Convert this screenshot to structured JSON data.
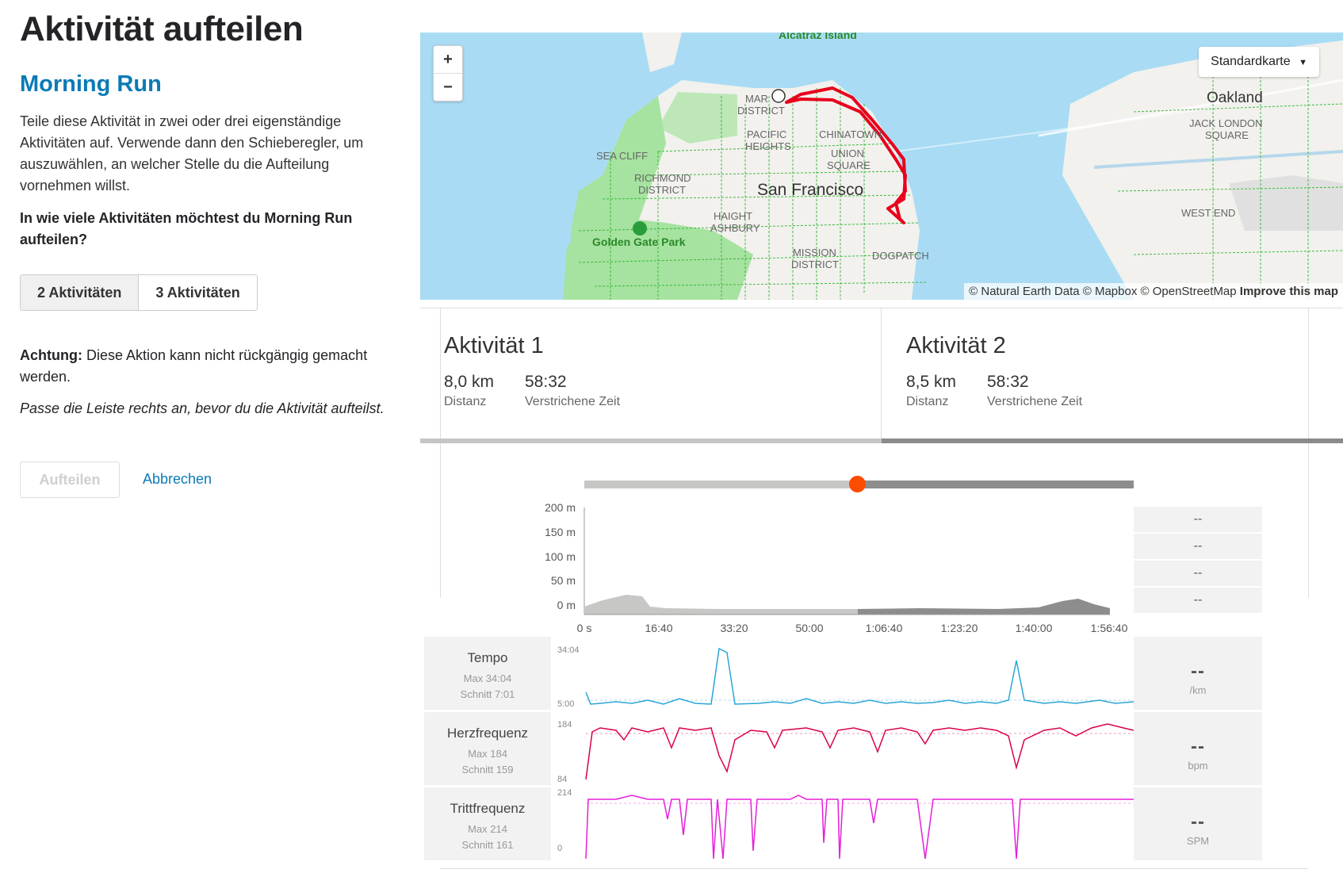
{
  "page": {
    "title": "Aktivität aufteilen",
    "activity_name": "Morning Run",
    "description": "Teile diese Aktivität in zwei oder drei eigenständige Aktivitäten auf. Verwende dann den Schieberegler, um auszuwählen, an welcher Stelle du die Aufteilung vornehmen willst.",
    "question": "In wie viele Aktivitäten möchtest du Morning Run aufteilen?",
    "option_two": "2 Aktivitäten",
    "option_three": "3 Aktivitäten",
    "warning_label": "Achtung:",
    "warning_text": " Diese Aktion kann nicht rückgängig gemacht werden.",
    "hint": "Passe die Leiste rechts an, bevor du die Aktivität aufteilst.",
    "split_button": "Aufteilen",
    "cancel_button": "Abbrechen"
  },
  "map": {
    "zoom_in": "+",
    "zoom_out": "−",
    "map_type": "Standardkarte",
    "attribution": "© Natural Earth Data © Mapbox © OpenStreetMap",
    "improve": "Improve this map",
    "labels": {
      "alcatraz": "Alcatraz Island",
      "marina": "MAR",
      "district": "DISTRICT",
      "pacific": "PACIFIC",
      "heights": "HEIGHTS",
      "chinatown": "CHINATOWN",
      "union": "UNION",
      "square": "SQUARE",
      "seacliff": "SEA CLIFF",
      "richmond": "RICHMOND",
      "richmond_district": "DISTRICT",
      "sf": "San Francisco",
      "haight": "HAIGHT",
      "ashbury": "ASHBURY",
      "ggpark": "Golden Gate Park",
      "mission": "MISSION",
      "mission_district": "DISTRICT",
      "dogpatch": "DOGPATCH",
      "oakland": "Oakland",
      "jack_london": "JACK LONDON",
      "jl_square": "SQUARE",
      "west_end": "WEST END"
    },
    "colors": {
      "water": "#a9dcf4",
      "land": "#f2f1ee",
      "park": "#a6e2a0",
      "route": "#e8001c"
    }
  },
  "activities": [
    {
      "title": "Aktivität 1",
      "distance": "8,0 km",
      "distance_label": "Distanz",
      "time": "58:32",
      "time_label": "Verstrichene Zeit"
    },
    {
      "title": "Aktivität 2",
      "distance": "8,5 km",
      "distance_label": "Distanz",
      "time": "58:32",
      "time_label": "Verstrichene Zeit"
    }
  ],
  "elevation": {
    "y_ticks": [
      "200 m",
      "150 m",
      "100 m",
      "50 m",
      "0 m"
    ],
    "x_ticks": [
      "0 s",
      "16:40",
      "33:20",
      "50:00",
      "1:06:40",
      "1:23:20",
      "1:40:00",
      "1:56:40"
    ],
    "right_values": [
      "--",
      "--",
      "--",
      "--"
    ]
  },
  "sensors": [
    {
      "name": "Tempo",
      "max": "Max 34:04",
      "avg": "Schnitt 7:01",
      "top_label": "34:04",
      "bottom_label": "5:00",
      "value": "--",
      "unit": "/km",
      "color": "#2aa6d6"
    },
    {
      "name": "Herzfrequenz",
      "max": "Max 184",
      "avg": "Schnitt 159",
      "top_label": "184",
      "bottom_label": "84",
      "value": "--",
      "unit": "bpm",
      "color": "#d9004c"
    },
    {
      "name": "Trittfrequenz",
      "max": "Max 214",
      "avg": "Schnitt 161",
      "top_label": "214",
      "bottom_label": "0",
      "value": "--",
      "unit": "SPM",
      "color": "#e51fd9"
    }
  ],
  "colors": {
    "accent": "#0b7ab5",
    "strava_orange": "#fc4c02"
  }
}
